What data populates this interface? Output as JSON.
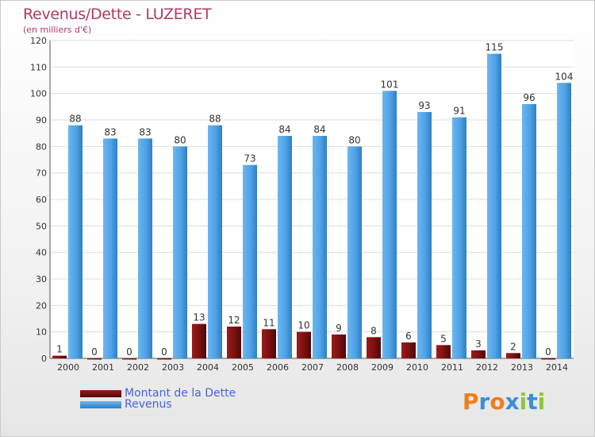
{
  "title": "Revenus/Dette - LUZERET",
  "subtitle": "(en milliers d'€)",
  "logo_text": "Proxiti",
  "colors": {
    "dette": "#7a1010",
    "revenus": "#4fa3e6",
    "title": "#b03a62",
    "legend_text": "#4a63d8"
  },
  "chart_data": {
    "type": "bar",
    "title": "Revenus/Dette - LUZERET",
    "subtitle": "(en milliers d'€)",
    "categories": [
      "2000",
      "2001",
      "2002",
      "2003",
      "2004",
      "2005",
      "2006",
      "2007",
      "2008",
      "2009",
      "2010",
      "2011",
      "2012",
      "2013",
      "2014"
    ],
    "series": [
      {
        "name": "Montant de la Dette",
        "values": [
          1,
          0,
          0,
          0,
          13,
          12,
          11,
          10,
          9,
          8,
          6,
          5,
          3,
          2,
          0
        ]
      },
      {
        "name": "Revenus",
        "values": [
          88,
          83,
          83,
          80,
          88,
          73,
          84,
          84,
          80,
          101,
          93,
          91,
          115,
          96,
          104
        ]
      }
    ],
    "ylim": [
      0,
      120
    ],
    "yticks": [
      0,
      10,
      20,
      30,
      40,
      50,
      60,
      70,
      80,
      90,
      100,
      110,
      120
    ],
    "grid": true,
    "legend_position": "bottom-left"
  }
}
